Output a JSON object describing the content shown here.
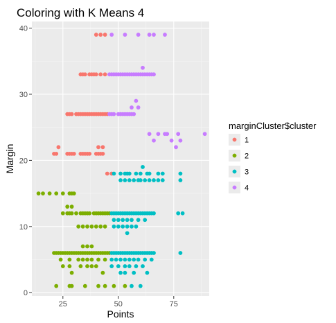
{
  "chart_data": {
    "type": "scatter",
    "title": "Coloring with K Means 4",
    "xlabel": "Points",
    "ylabel": "Margin",
    "xlim": [
      11,
      91
    ],
    "ylim": [
      -0.5,
      41
    ],
    "x_ticks": [
      25,
      50,
      75
    ],
    "y_ticks": [
      0,
      10,
      20,
      30,
      40
    ],
    "grid": true,
    "legend_position": "right",
    "legend_title": "marginCluster$cluster",
    "series": [
      {
        "name": "1",
        "color": "#F8766D",
        "points": [
          [
            40,
            39
          ],
          [
            42,
            39
          ],
          [
            44,
            39
          ],
          [
            33,
            33
          ],
          [
            34,
            33
          ],
          [
            35,
            33
          ],
          [
            37,
            33
          ],
          [
            38,
            33
          ],
          [
            39,
            33
          ],
          [
            40,
            33
          ],
          [
            42,
            33
          ],
          [
            44,
            33
          ],
          [
            27,
            27
          ],
          [
            28,
            27
          ],
          [
            29,
            27
          ],
          [
            31,
            27
          ],
          [
            32,
            27
          ],
          [
            33,
            27
          ],
          [
            34,
            27
          ],
          [
            35,
            27
          ],
          [
            36,
            27
          ],
          [
            37,
            27
          ],
          [
            38,
            27
          ],
          [
            39,
            27
          ],
          [
            40,
            27
          ],
          [
            41,
            27
          ],
          [
            42,
            27
          ],
          [
            43,
            27
          ],
          [
            44,
            27
          ],
          [
            45,
            27
          ],
          [
            23,
            22
          ],
          [
            41,
            22
          ],
          [
            43,
            22
          ],
          [
            21,
            21
          ],
          [
            22,
            21
          ],
          [
            27,
            21
          ],
          [
            28,
            21
          ],
          [
            29,
            21
          ],
          [
            30,
            21
          ],
          [
            33,
            21
          ],
          [
            34,
            21
          ],
          [
            35,
            21
          ],
          [
            36,
            21
          ],
          [
            37,
            21
          ],
          [
            40,
            21
          ],
          [
            41,
            21
          ],
          [
            42,
            21
          ],
          [
            43,
            21
          ],
          [
            45,
            18
          ],
          [
            47,
            18
          ]
        ]
      },
      {
        "name": "2",
        "color": "#7CAE00",
        "points": [
          [
            14,
            15
          ],
          [
            16,
            15
          ],
          [
            19,
            15
          ],
          [
            22,
            15
          ],
          [
            25,
            15
          ],
          [
            28,
            15
          ],
          [
            29,
            15
          ],
          [
            30,
            15
          ],
          [
            27,
            13
          ],
          [
            29,
            13
          ],
          [
            25,
            12
          ],
          [
            27,
            12
          ],
          [
            28,
            12
          ],
          [
            29,
            12
          ],
          [
            31,
            12
          ],
          [
            33,
            12
          ],
          [
            34,
            12
          ],
          [
            35,
            12
          ],
          [
            36,
            12
          ],
          [
            37,
            12
          ],
          [
            39,
            12
          ],
          [
            40,
            12
          ],
          [
            41,
            12
          ],
          [
            42,
            12
          ],
          [
            43,
            12
          ],
          [
            44,
            12
          ],
          [
            45,
            12
          ],
          [
            46,
            12
          ],
          [
            32,
            10
          ],
          [
            34,
            10
          ],
          [
            36,
            10
          ],
          [
            38,
            10
          ],
          [
            40,
            10
          ],
          [
            42,
            10
          ],
          [
            44,
            10
          ],
          [
            34,
            7
          ],
          [
            36,
            7
          ],
          [
            38,
            7
          ],
          [
            21,
            6
          ],
          [
            22,
            6
          ],
          [
            23,
            6
          ],
          [
            24,
            6
          ],
          [
            25,
            6
          ],
          [
            26,
            6
          ],
          [
            27,
            6
          ],
          [
            28,
            6
          ],
          [
            29,
            6
          ],
          [
            30,
            6
          ],
          [
            31,
            6
          ],
          [
            32,
            6
          ],
          [
            33,
            6
          ],
          [
            34,
            6
          ],
          [
            35,
            6
          ],
          [
            36,
            6
          ],
          [
            37,
            6
          ],
          [
            38,
            6
          ],
          [
            39,
            6
          ],
          [
            40,
            6
          ],
          [
            41,
            6
          ],
          [
            42,
            6
          ],
          [
            43,
            6
          ],
          [
            44,
            6
          ],
          [
            45,
            6
          ],
          [
            46,
            6
          ],
          [
            24,
            5
          ],
          [
            28,
            5
          ],
          [
            32,
            5
          ],
          [
            34,
            5
          ],
          [
            36,
            5
          ],
          [
            38,
            5
          ],
          [
            41,
            5
          ],
          [
            44,
            5
          ],
          [
            25,
            4
          ],
          [
            28,
            4
          ],
          [
            33,
            4
          ],
          [
            36,
            4
          ],
          [
            38,
            4
          ],
          [
            40,
            4
          ],
          [
            29,
            3
          ],
          [
            43,
            3
          ],
          [
            22,
            1
          ],
          [
            28,
            1
          ],
          [
            29,
            1
          ],
          [
            35,
            1
          ],
          [
            41,
            1
          ],
          [
            44,
            1
          ],
          [
            48,
            1
          ],
          [
            53,
            1
          ]
        ]
      },
      {
        "name": "3",
        "color": "#00BFC4",
        "points": [
          [
            61,
            19
          ],
          [
            48,
            18
          ],
          [
            51,
            18
          ],
          [
            53,
            18
          ],
          [
            54,
            18
          ],
          [
            55,
            18
          ],
          [
            58,
            18
          ],
          [
            60,
            18
          ],
          [
            63,
            18
          ],
          [
            64,
            18
          ],
          [
            68,
            18
          ],
          [
            70,
            18
          ],
          [
            78,
            18
          ],
          [
            51,
            17
          ],
          [
            53,
            17
          ],
          [
            55,
            17
          ],
          [
            57,
            17
          ],
          [
            59,
            17
          ],
          [
            60,
            17
          ],
          [
            62,
            17
          ],
          [
            64,
            17
          ],
          [
            66,
            17
          ],
          [
            68,
            17
          ],
          [
            70,
            17
          ],
          [
            78,
            17
          ],
          [
            47,
            12
          ],
          [
            48,
            12
          ],
          [
            49,
            12
          ],
          [
            50,
            12
          ],
          [
            51,
            12
          ],
          [
            52,
            12
          ],
          [
            53,
            12
          ],
          [
            54,
            12
          ],
          [
            55,
            12
          ],
          [
            56,
            12
          ],
          [
            57,
            12
          ],
          [
            58,
            12
          ],
          [
            59,
            12
          ],
          [
            60,
            12
          ],
          [
            61,
            12
          ],
          [
            62,
            12
          ],
          [
            63,
            12
          ],
          [
            64,
            12
          ],
          [
            65,
            12
          ],
          [
            66,
            12
          ],
          [
            77,
            12
          ],
          [
            79,
            12
          ],
          [
            48,
            11
          ],
          [
            50,
            11
          ],
          [
            52,
            11
          ],
          [
            54,
            11
          ],
          [
            56,
            11
          ],
          [
            59,
            11
          ],
          [
            62,
            11
          ],
          [
            48,
            10
          ],
          [
            50,
            10
          ],
          [
            52,
            10
          ],
          [
            54,
            10
          ],
          [
            56,
            10
          ],
          [
            58,
            10
          ],
          [
            54,
            9
          ],
          [
            47,
            6
          ],
          [
            48,
            6
          ],
          [
            49,
            6
          ],
          [
            50,
            6
          ],
          [
            51,
            6
          ],
          [
            52,
            6
          ],
          [
            53,
            6
          ],
          [
            54,
            6
          ],
          [
            55,
            6
          ],
          [
            56,
            6
          ],
          [
            57,
            6
          ],
          [
            58,
            6
          ],
          [
            59,
            6
          ],
          [
            60,
            6
          ],
          [
            61,
            6
          ],
          [
            62,
            6
          ],
          [
            63,
            6
          ],
          [
            64,
            6
          ],
          [
            65,
            6
          ],
          [
            66,
            6
          ],
          [
            78,
            6
          ],
          [
            47,
            5
          ],
          [
            49,
            5
          ],
          [
            51,
            5
          ],
          [
            53,
            5
          ],
          [
            55,
            5
          ],
          [
            57,
            5
          ],
          [
            59,
            5
          ],
          [
            62,
            5
          ],
          [
            65,
            5
          ],
          [
            47,
            4
          ],
          [
            50,
            4
          ],
          [
            53,
            4
          ],
          [
            55,
            4
          ],
          [
            58,
            4
          ],
          [
            61,
            4
          ],
          [
            51,
            3
          ],
          [
            53,
            3
          ],
          [
            57,
            3
          ],
          [
            63,
            3
          ],
          [
            56,
            1
          ],
          [
            60,
            1
          ]
        ]
      },
      {
        "name": "4",
        "color": "#C77CFF",
        "points": [
          [
            47,
            39
          ],
          [
            53,
            39
          ],
          [
            59,
            39
          ],
          [
            64,
            39
          ],
          [
            66,
            39
          ],
          [
            71,
            39
          ],
          [
            61,
            34
          ],
          [
            46,
            33
          ],
          [
            47,
            33
          ],
          [
            48,
            33
          ],
          [
            49,
            33
          ],
          [
            50,
            33
          ],
          [
            51,
            33
          ],
          [
            52,
            33
          ],
          [
            53,
            33
          ],
          [
            54,
            33
          ],
          [
            55,
            33
          ],
          [
            56,
            33
          ],
          [
            57,
            33
          ],
          [
            58,
            33
          ],
          [
            59,
            33
          ],
          [
            60,
            33
          ],
          [
            61,
            33
          ],
          [
            62,
            33
          ],
          [
            63,
            33
          ],
          [
            64,
            33
          ],
          [
            65,
            33
          ],
          [
            66,
            33
          ],
          [
            58,
            29
          ],
          [
            56,
            28
          ],
          [
            59,
            28
          ],
          [
            46,
            27
          ],
          [
            47,
            27
          ],
          [
            48,
            27
          ],
          [
            50,
            27
          ],
          [
            51,
            27
          ],
          [
            52,
            27
          ],
          [
            53,
            27
          ],
          [
            54,
            27
          ],
          [
            55,
            27
          ],
          [
            56,
            27
          ],
          [
            57,
            27
          ],
          [
            64,
            24
          ],
          [
            68,
            24
          ],
          [
            71,
            24
          ],
          [
            72,
            24
          ],
          [
            77,
            24
          ],
          [
            89,
            24
          ],
          [
            66,
            23
          ],
          [
            74,
            23
          ],
          [
            78,
            23
          ],
          [
            76,
            22
          ]
        ]
      }
    ]
  }
}
